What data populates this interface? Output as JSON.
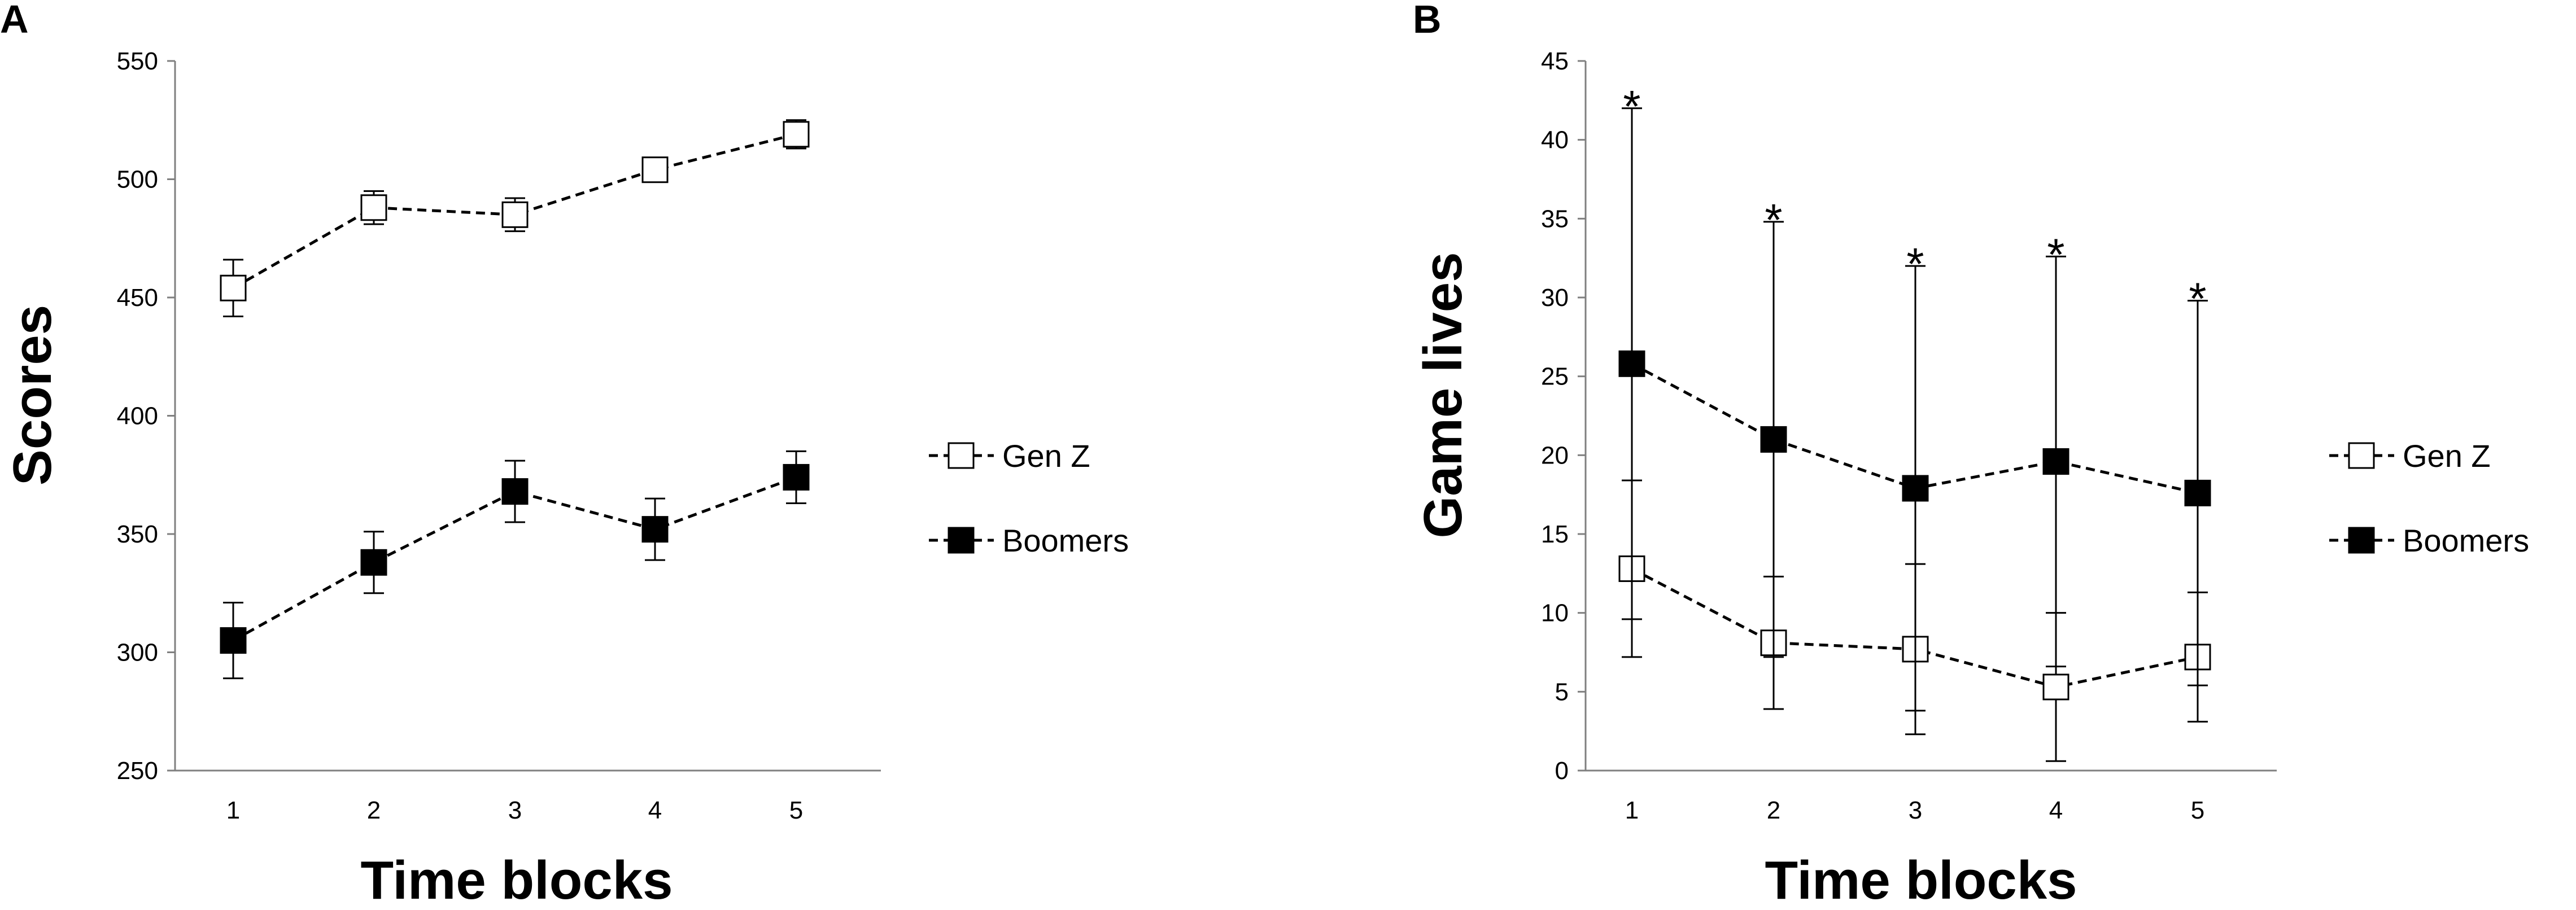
{
  "chart_data": [
    {
      "panel": "A",
      "type": "line",
      "xlabel": "Time blocks",
      "ylabel": "Scores",
      "categories": [
        "1",
        "2",
        "3",
        "4",
        "5"
      ],
      "ylim": [
        250,
        550
      ],
      "yticks": [
        "250",
        "300",
        "350",
        "400",
        "450",
        "500",
        "550"
      ],
      "grid": false,
      "legend_placement": "right",
      "series": [
        {
          "name": "Gen Z",
          "marker": "open-square",
          "values": [
            454,
            488,
            485,
            504,
            519
          ],
          "err": [
            12,
            7,
            7,
            3,
            6
          ]
        },
        {
          "name": "Boomers",
          "marker": "filled-square",
          "values": [
            305,
            338,
            368,
            352,
            374
          ],
          "err": [
            16,
            13,
            13,
            13,
            11
          ]
        }
      ]
    },
    {
      "panel": "B",
      "type": "line",
      "xlabel": "Time blocks",
      "ylabel": "Game lives",
      "categories": [
        "1",
        "2",
        "3",
        "4",
        "5"
      ],
      "ylim": [
        0,
        45
      ],
      "yticks": [
        "0",
        "5",
        "10",
        "15",
        "20",
        "25",
        "30",
        "35",
        "40",
        "45"
      ],
      "grid": false,
      "legend_placement": "right",
      "annotations": [
        "*",
        "*",
        "*",
        "*",
        "*"
      ],
      "series": [
        {
          "name": "Gen Z",
          "marker": "open-square",
          "values": [
            12.8,
            8.1,
            7.7,
            5.3,
            7.2
          ],
          "err": [
            5.6,
            4.2,
            5.4,
            4.7,
            4.1
          ]
        },
        {
          "name": "Boomers",
          "marker": "filled-square",
          "values": [
            25.8,
            21.0,
            17.9,
            19.6,
            17.6
          ],
          "err": [
            16.2,
            13.8,
            14.1,
            13.0,
            12.2
          ]
        }
      ]
    }
  ]
}
